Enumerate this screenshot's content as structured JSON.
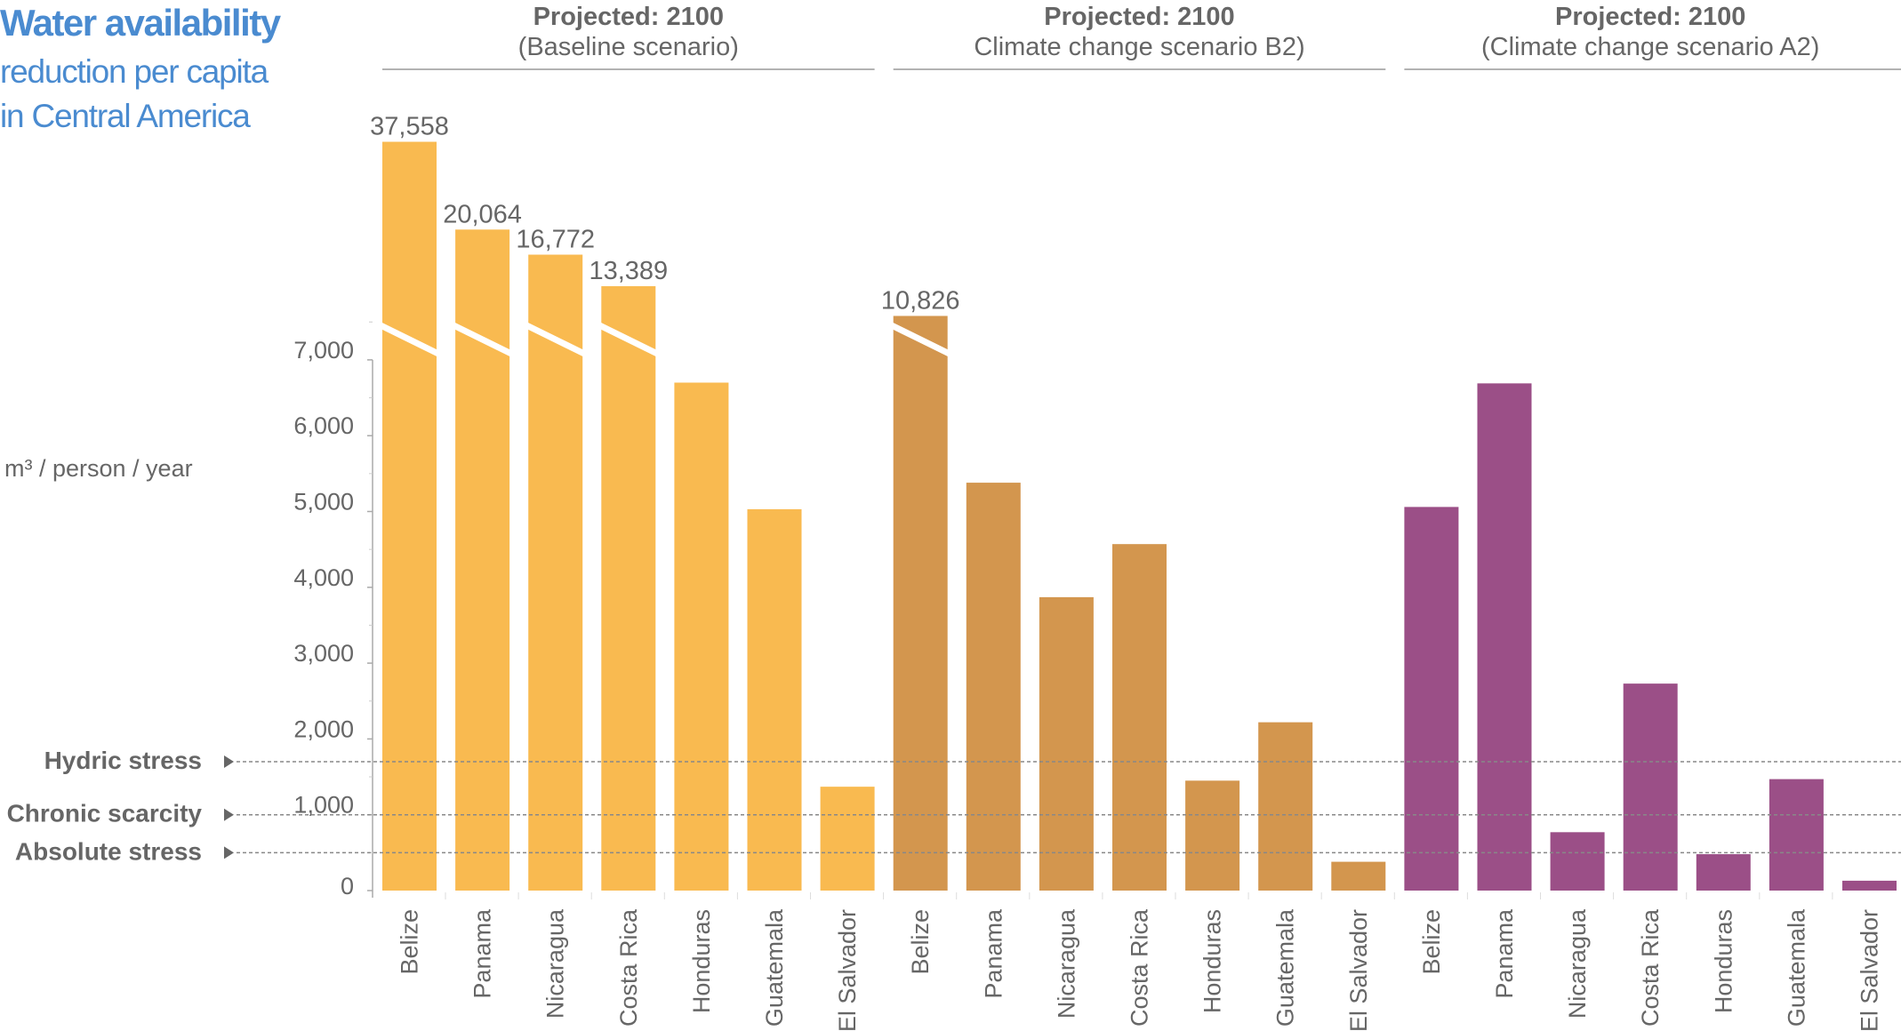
{
  "title": "Water availability",
  "subtitle_lines": [
    "reduction per capita",
    "in Central America"
  ],
  "chart_data": {
    "type": "bar",
    "ylabel": "m³ / person / year",
    "ylim": [
      0,
      7000
    ],
    "yticks": [
      "0",
      "1,000",
      "2,000",
      "3,000",
      "4,000",
      "5,000",
      "6,000",
      "7,000"
    ],
    "ytick_values": [
      0,
      1000,
      2000,
      3000,
      4000,
      5000,
      6000,
      7000
    ],
    "axis_break": true,
    "grid": false,
    "categories": [
      "Belize",
      "Panama",
      "Nicaragua",
      "Costa Rica",
      "Honduras",
      "Guatemala",
      "El Salvador"
    ],
    "groups": [
      {
        "title": "Projected: 2100",
        "subtitle": "(Baseline scenario)",
        "color": "#F9BA50",
        "values": [
          37558,
          20064,
          16772,
          13389,
          6700,
          5030,
          1370
        ],
        "labels": [
          "37,558",
          "20,064",
          "16,772",
          "13,389",
          "",
          "",
          ""
        ]
      },
      {
        "title": "Projected: 2100",
        "subtitle": "Climate change scenario B2)",
        "color": "#D3964E",
        "values": [
          10826,
          5380,
          3870,
          4570,
          1450,
          2220,
          380
        ],
        "labels": [
          "10,826",
          "",
          "",
          "",
          "",
          "",
          ""
        ]
      },
      {
        "title": "Projected: 2100",
        "subtitle": "(Climate change scenario A2)",
        "color": "#9B4F87",
        "values": [
          5060,
          6690,
          770,
          2730,
          480,
          1470,
          130
        ],
        "labels": [
          "",
          "",
          "",
          "",
          "",
          "",
          ""
        ]
      }
    ],
    "thresholds": [
      {
        "label": "Hydric stress",
        "value": 1700
      },
      {
        "label": "Chronic scarcity",
        "value": 1000
      },
      {
        "label": "Absolute stress",
        "value": 500
      }
    ]
  }
}
